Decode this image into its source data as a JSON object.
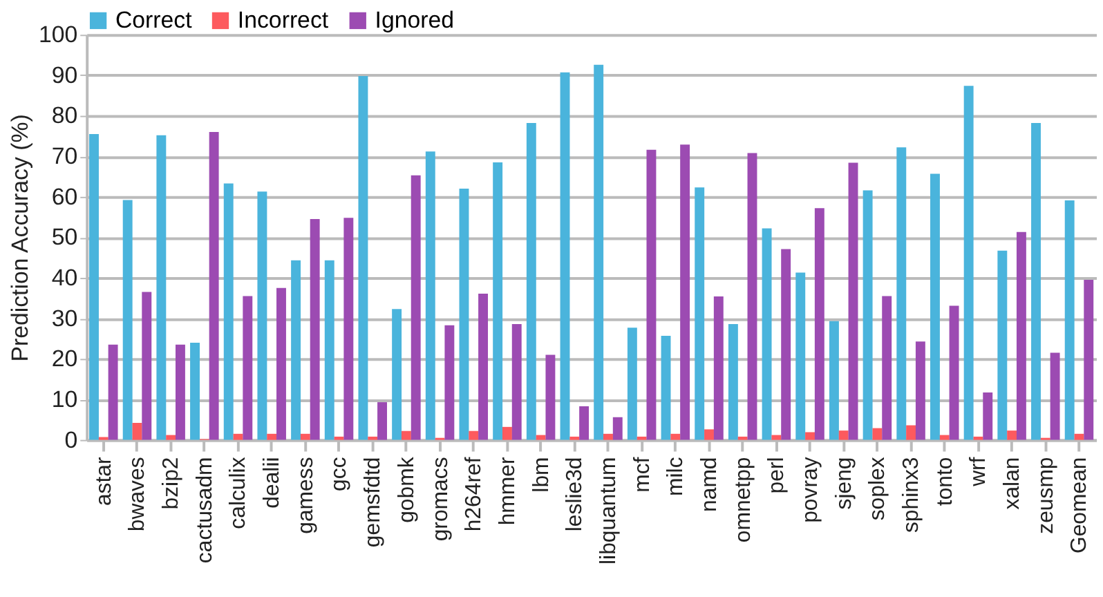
{
  "chart_data": {
    "type": "bar",
    "ylabel": "Prediction Accuracy (%)",
    "categories": [
      "astar",
      "bwaves",
      "bzip2",
      "cactusadm",
      "calculix",
      "dealii",
      "gamess",
      "gcc",
      "gemsfdtd",
      "gobmk",
      "gromacs",
      "h264ref",
      "hmmer",
      "lbm",
      "leslie3d",
      "libquantum",
      "mcf",
      "milc",
      "namd",
      "omnetpp",
      "perl",
      "povray",
      "sjeng",
      "soplex",
      "sphinx3",
      "tonto",
      "wrf",
      "xalan",
      "zeusmp",
      "Geomean"
    ],
    "series": [
      {
        "name": "Correct",
        "color": "#4ab4dc",
        "values": [
          75.5,
          59.2,
          75.2,
          24,
          63.3,
          61.3,
          44.3,
          44.3,
          89.8,
          32.3,
          71.2,
          62,
          68.5,
          78.2,
          90.7,
          92.6,
          27.7,
          25.7,
          62.3,
          28.6,
          52.2,
          41.3,
          29.3,
          61.6,
          72.2,
          65.7,
          87.4,
          46.7,
          78.2,
          59.1
        ]
      },
      {
        "name": "Incorrect",
        "color": "#fd5a5e",
        "values": [
          0.7,
          4.2,
          1.2,
          0.2,
          1.5,
          1.5,
          1.5,
          0.8,
          0.8,
          2.2,
          0.5,
          2.2,
          3.2,
          1.2,
          0.8,
          1.5,
          0.8,
          1.5,
          2.6,
          0.8,
          1.2,
          1.9,
          2.3,
          2.9,
          3.6,
          1.2,
          0.8,
          2.3,
          0.5,
          1.5
        ]
      },
      {
        "name": "Ignored",
        "color": "#9c4bb2",
        "values": [
          23.5,
          36.5,
          23.5,
          76,
          35.5,
          37.5,
          54.5,
          54.8,
          9.3,
          65.3,
          28.3,
          36.1,
          28.6,
          21,
          8.3,
          5.6,
          71.6,
          72.9,
          35.4,
          70.8,
          47.1,
          57.2,
          68.4,
          35.5,
          24.3,
          33.1,
          11.7,
          51.3,
          21.5,
          39.5
        ]
      }
    ],
    "ylim": [
      0,
      100
    ],
    "yticks": [
      0,
      10,
      20,
      30,
      40,
      50,
      60,
      70,
      80,
      90,
      100
    ],
    "grid": "y",
    "legend": "top"
  }
}
